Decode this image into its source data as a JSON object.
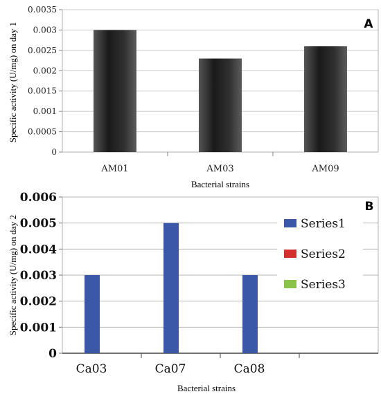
{
  "chart_data": [
    {
      "type": "bar",
      "panel_label": "A",
      "categories": [
        "AM01",
        "AM03",
        "AM09"
      ],
      "values": [
        0.003,
        0.0023,
        0.0026
      ],
      "xlabel": "Bacterial strains",
      "ylabel": "Specific activity (U/mg) on day 1",
      "ylim": [
        0,
        0.0035
      ],
      "yticks": [
        "0",
        "0.0005",
        "0.001",
        "0.0015",
        "0.002",
        "0.0025",
        "0.003",
        "0.0035"
      ],
      "bar_color": "#2b2b2b",
      "grid": true,
      "legend": "none"
    },
    {
      "type": "bar",
      "panel_label": "B",
      "categories": [
        "Ca03",
        "Ca07",
        "Ca08",
        ""
      ],
      "series": [
        {
          "name": "Series1",
          "values": [
            0.003,
            0.005,
            0.003,
            null
          ],
          "color": "#3a57a8"
        },
        {
          "name": "Series2",
          "values": [
            null,
            null,
            null,
            null
          ],
          "color": "#d32f2f"
        },
        {
          "name": "Series3",
          "values": [
            null,
            null,
            null,
            null
          ],
          "color": "#8bc34a"
        }
      ],
      "xlabel": "Bacterial strains",
      "ylabel": "Specific activity (U/mg) on day 2",
      "ylim": [
        0,
        0.006
      ],
      "yticks": [
        "0",
        "0.001",
        "0.002",
        "0.003",
        "0.004",
        "0.005",
        "0.006"
      ],
      "grid": true,
      "legend": "right"
    }
  ]
}
